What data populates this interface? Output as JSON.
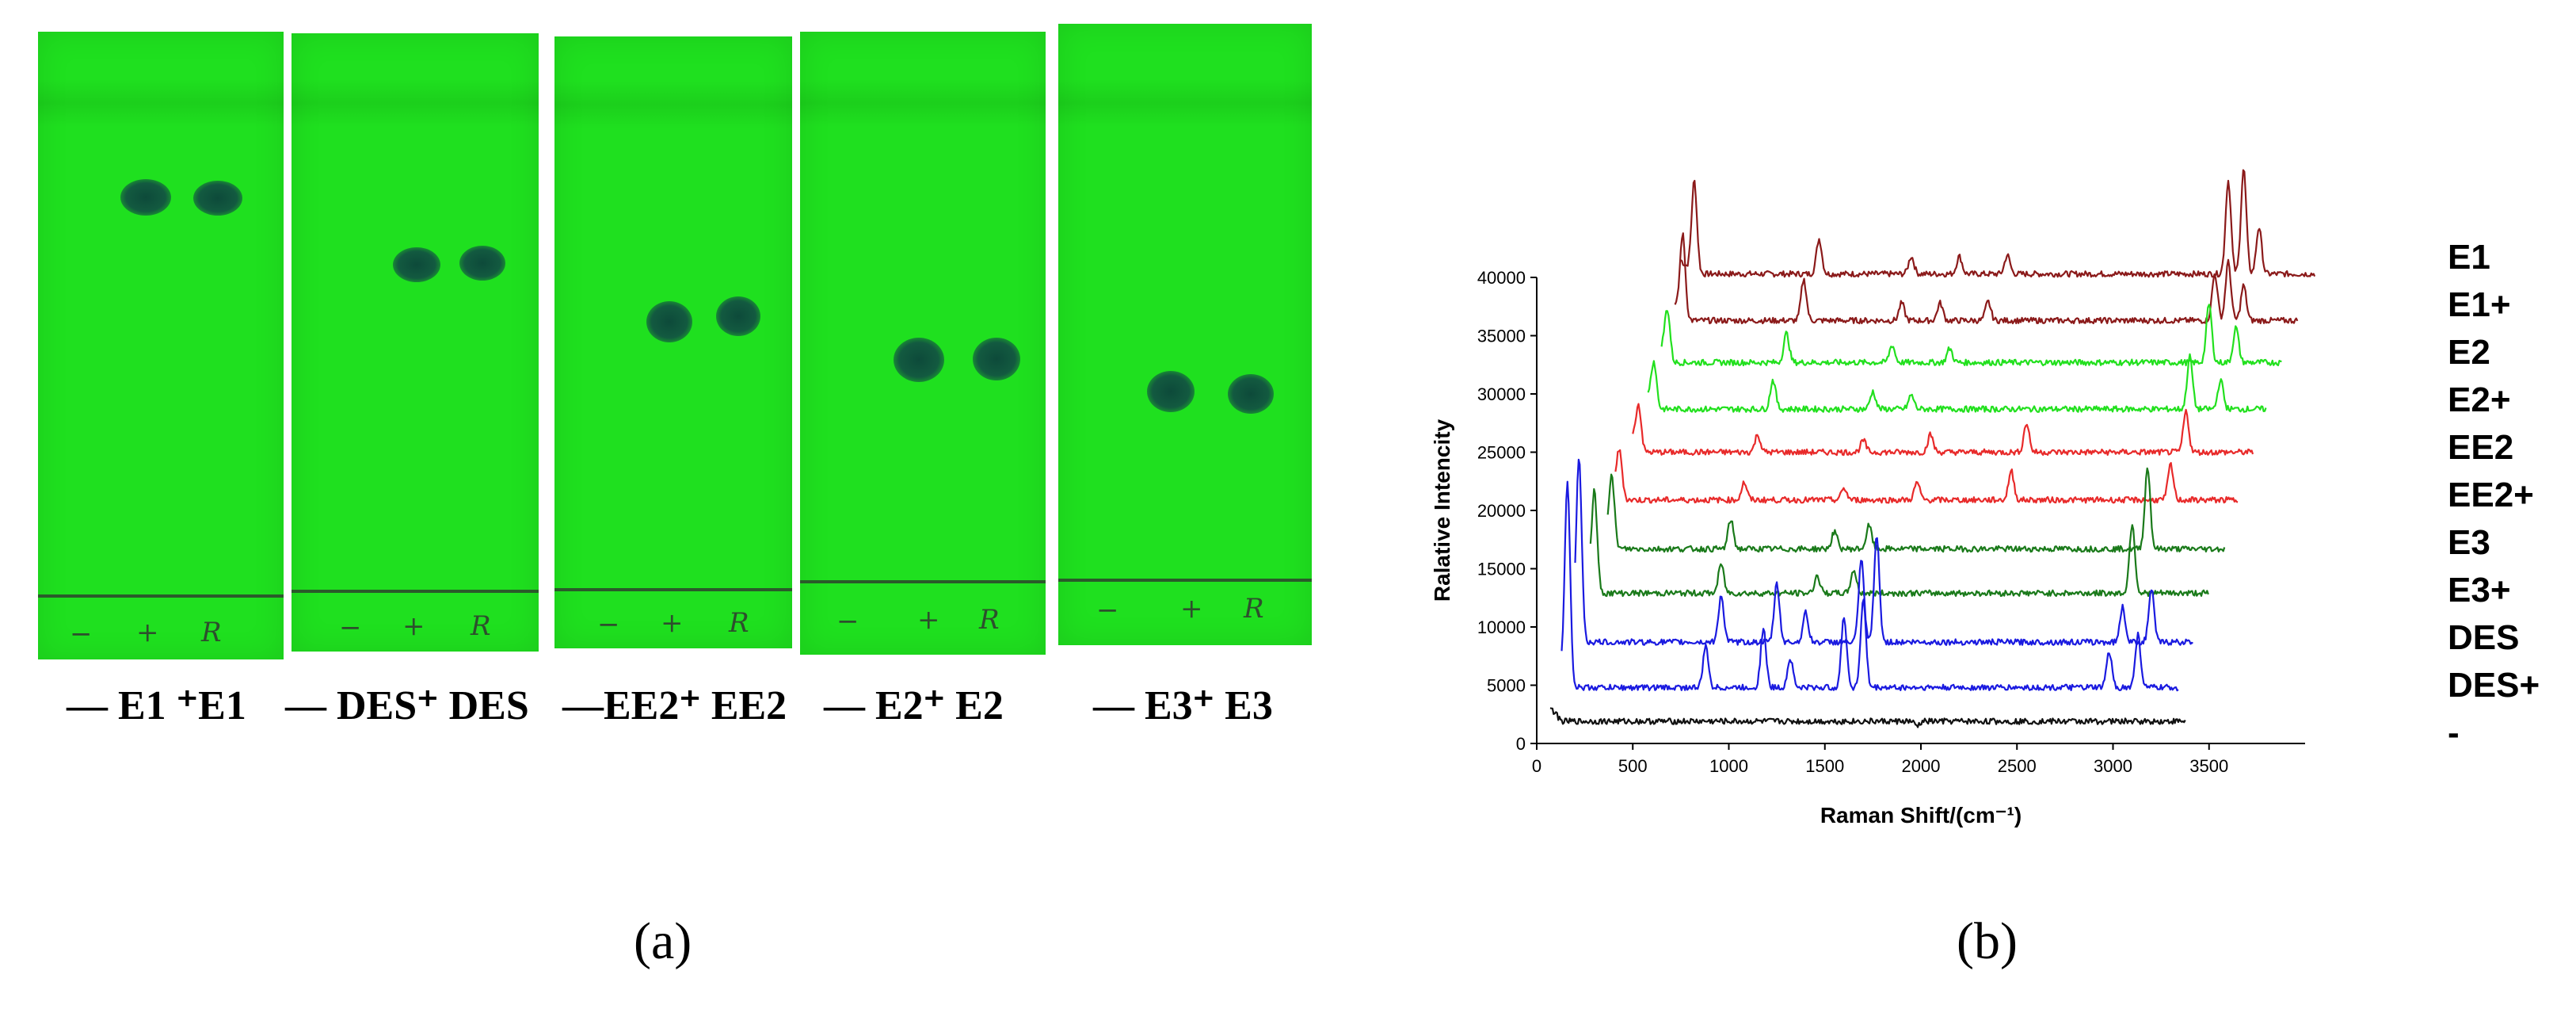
{
  "panel_a": {
    "label": "(a)",
    "plates": [
      {
        "caption": "— E1 ⁺E1"
      },
      {
        "caption": "— DES⁺ DES"
      },
      {
        "caption": "—EE2⁺ EE2"
      },
      {
        "caption": "—   E2⁺ E2"
      },
      {
        "caption": "—   E3⁺ E3"
      }
    ],
    "pencil_marks": [
      "−",
      "+",
      "R"
    ]
  },
  "panel_b": {
    "label": "(b)"
  },
  "chart_data": {
    "type": "line",
    "title": "",
    "xlabel": "Raman Shift/(cm⁻¹)",
    "ylabel": "Ralative Intencity",
    "xlim": [
      0,
      4000
    ],
    "ylim": [
      0,
      40000
    ],
    "x_ticks": [
      0,
      500,
      1000,
      1500,
      2000,
      2500,
      3000,
      3500
    ],
    "y_ticks": [
      0,
      5000,
      10000,
      15000,
      20000,
      25000,
      30000,
      35000,
      40000
    ],
    "series": [
      {
        "name": "E1",
        "color": "#8b1a1a",
        "x_start": 750,
        "x_end": 4050,
        "baseline": 40300,
        "peaks": [
          [
            820,
            8000
          ],
          [
            1470,
            3000
          ],
          [
            1950,
            1500
          ],
          [
            2200,
            1500
          ],
          [
            2450,
            1600
          ],
          [
            3600,
            8000
          ],
          [
            3680,
            9000
          ],
          [
            3760,
            4000
          ]
        ]
      },
      {
        "name": "E1+",
        "color": "#8b1a1a",
        "x_start": 720,
        "x_end": 3960,
        "baseline": 36300,
        "peaks": [
          [
            760,
            7000
          ],
          [
            1390,
            3500
          ],
          [
            1900,
            1500
          ],
          [
            2100,
            1500
          ],
          [
            2350,
            1600
          ],
          [
            3530,
            4000
          ],
          [
            3600,
            5000
          ],
          [
            3680,
            3000
          ]
        ]
      },
      {
        "name": "E2",
        "color": "#22e01e",
        "x_start": 650,
        "x_end": 3880,
        "baseline": 32700,
        "peaks": [
          [
            680,
            4000
          ],
          [
            1300,
            2500
          ],
          [
            1850,
            1500
          ],
          [
            2150,
            1200
          ],
          [
            3500,
            5000
          ],
          [
            3640,
            3000
          ]
        ]
      },
      {
        "name": "E2+",
        "color": "#22e01e",
        "x_start": 580,
        "x_end": 3800,
        "baseline": 28700,
        "peaks": [
          [
            610,
            3500
          ],
          [
            1230,
            2500
          ],
          [
            1750,
            1500
          ],
          [
            1950,
            1200
          ],
          [
            3400,
            4500
          ],
          [
            3560,
            2500
          ]
        ]
      },
      {
        "name": "EE2",
        "color": "#e82a2a",
        "x_start": 500,
        "x_end": 3730,
        "baseline": 25000,
        "peaks": [
          [
            530,
            3500
          ],
          [
            1150,
            1500
          ],
          [
            1700,
            1000
          ],
          [
            2050,
            1500
          ],
          [
            2550,
            2500
          ],
          [
            3380,
            3500
          ]
        ]
      },
      {
        "name": "EE2+",
        "color": "#e82a2a",
        "x_start": 410,
        "x_end": 3650,
        "baseline": 20900,
        "peaks": [
          [
            430,
            3500
          ],
          [
            1080,
            1500
          ],
          [
            1600,
            1000
          ],
          [
            1980,
            1500
          ],
          [
            2470,
            2500
          ],
          [
            3300,
            3000
          ]
        ]
      },
      {
        "name": "E3",
        "color": "#1a7a1a",
        "x_start": 370,
        "x_end": 3580,
        "baseline": 16700,
        "peaks": [
          [
            390,
            5500
          ],
          [
            1010,
            2500
          ],
          [
            1550,
            1500
          ],
          [
            1730,
            2000
          ],
          [
            3180,
            7000
          ]
        ]
      },
      {
        "name": "E3+",
        "color": "#1a7a1a",
        "x_start": 280,
        "x_end": 3500,
        "baseline": 12900,
        "peaks": [
          [
            300,
            8000
          ],
          [
            960,
            2500
          ],
          [
            1460,
            1500
          ],
          [
            1650,
            2000
          ],
          [
            3100,
            6000
          ]
        ]
      },
      {
        "name": "DES",
        "color": "#1a1ae0",
        "x_start": 200,
        "x_end": 3420,
        "baseline": 8700,
        "peaks": [
          [
            220,
            15000
          ],
          [
            960,
            4000
          ],
          [
            1250,
            5000
          ],
          [
            1400,
            2500
          ],
          [
            1690,
            7000
          ],
          [
            1770,
            9000
          ],
          [
            3050,
            3000
          ],
          [
            3200,
            4500
          ]
        ]
      },
      {
        "name": "DES+",
        "color": "#1a1ae0",
        "x_start": 130,
        "x_end": 3340,
        "baseline": 4800,
        "peaks": [
          [
            160,
            17000
          ],
          [
            880,
            3500
          ],
          [
            1180,
            5000
          ],
          [
            1320,
            2500
          ],
          [
            1600,
            6000
          ],
          [
            1700,
            7500
          ],
          [
            2980,
            3000
          ],
          [
            3130,
            4500
          ]
        ]
      },
      {
        "name": "-",
        "color": "#111111",
        "x_start": 70,
        "x_end": 3380,
        "baseline": 1900,
        "peaks": [
          [
            1980,
            -400
          ]
        ]
      }
    ]
  }
}
